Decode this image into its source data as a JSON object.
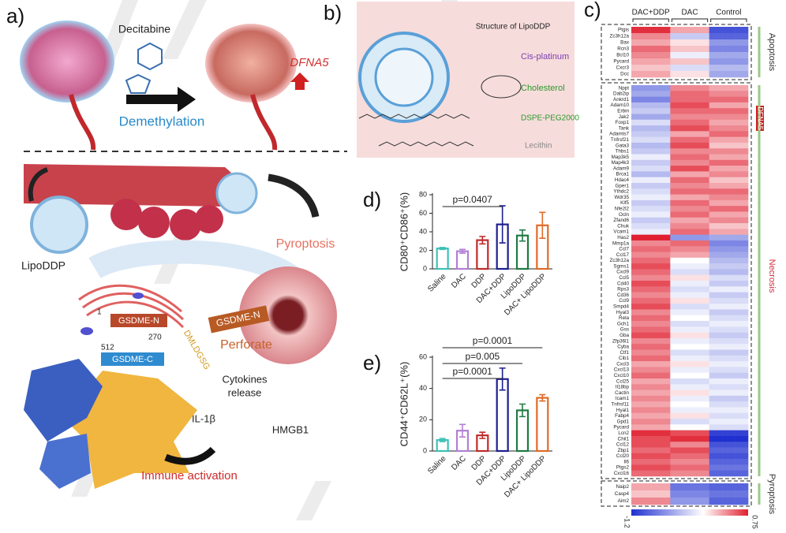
{
  "panel_a": {
    "label": "a)",
    "drug": "Decitabine",
    "process": "Demethylation",
    "gene": "DFNA5",
    "carrier": "LipoDDP",
    "outcome": "Pyroptosis",
    "gsdme_n_1": "GSDME-N",
    "gsdme_n_2": "GSDME-N",
    "gsdme_c": "GSDME-C",
    "residue_start": 1,
    "residue_cut": 270,
    "residue_end": 512,
    "motif": "DMLDGSG",
    "perforate": "Perforate",
    "cytokines": "Cytokines",
    "release": "release",
    "il1b": "IL-1β",
    "hmgb1": "HMGB1",
    "immune": "Immune activation"
  },
  "panel_b": {
    "label": "b)",
    "title": "Structure of LipoDDP",
    "components": [
      "Cis-platinum",
      "Cholesterol",
      "DSPE-PEG2000",
      "Lecithin"
    ]
  },
  "heatmap": {
    "label": "c)",
    "groups": [
      "DAC+DDP",
      "DAC",
      "Control"
    ],
    "marker": "DFNA5",
    "colorbar": {
      "min": -1.2,
      "max": 0.75
    },
    "blocks": [
      {
        "name": "Apoptosis",
        "genes": [
          "Ptgis",
          "Zc3h12a",
          "Bax",
          "Rcn3",
          "Bcl10",
          "Pycard",
          "Cxcr3",
          "Dcc"
        ],
        "values": [
          [
            0.7,
            0.3,
            -1.0
          ],
          [
            0.4,
            -0.3,
            -0.9
          ],
          [
            0.3,
            0.1,
            -0.6
          ],
          [
            0.5,
            0.2,
            -0.7
          ],
          [
            0.4,
            -0.1,
            -0.5
          ],
          [
            0.3,
            0.2,
            -0.6
          ],
          [
            0.2,
            -0.2,
            -0.4
          ],
          [
            0.3,
            0.1,
            -0.5
          ]
        ]
      },
      {
        "name": "Necrosis",
        "genes": [
          "Nppt",
          "Dab2ip",
          "Ankrd1",
          "Adam10",
          "Erbin",
          "Jak2",
          "Foxp1",
          "Tank",
          "Adamts7",
          "Tnfrsf21",
          "Gata3",
          "Thbs1",
          "Map3k5",
          "Map4k3",
          "Adam9",
          "Brca1",
          "Hdac4",
          "Gper1",
          "Ythdc2",
          "Wdr35",
          "Klf5",
          "Nfe2l2",
          "Ocln",
          "Zfand6",
          "Chuk",
          "Vcam1",
          "Has2",
          "Mmp1a",
          "Ccl7",
          "Ccl17",
          "Zc3h12a",
          "Sgms1",
          "Cxcl9",
          "Ccl5",
          "Cd40",
          "Rps3",
          "Cd36",
          "Ccl9",
          "Smpd4",
          "Hyal3",
          "Rela",
          "Gch1",
          "Gss",
          "Gba",
          "Zfp36l1",
          "Cyba",
          "Ctf1",
          "Cib1",
          "Cxcl3",
          "Cxcl13",
          "Cxcl10",
          "Ccl25",
          "Il18bp",
          "Cactin",
          "Icam1",
          "Tnfrsf11",
          "Hyal1",
          "Fabp4",
          "Gpd1",
          "Pycard",
          "Lcn2",
          "Chil1",
          "Ccl12",
          "Zbp1",
          "Ccl20",
          "Il6",
          "Ptgs2",
          "Cxcl16"
        ],
        "values": [
          [
            -0.6,
            0.4,
            0.3
          ],
          [
            -0.5,
            0.5,
            0.4
          ],
          [
            -0.7,
            0.5,
            0.5
          ],
          [
            -0.4,
            0.6,
            0.3
          ],
          [
            -0.3,
            0.5,
            0.5
          ],
          [
            -0.5,
            0.4,
            0.4
          ],
          [
            -0.2,
            0.5,
            0.3
          ],
          [
            -0.4,
            0.6,
            0.4
          ],
          [
            -0.3,
            0.3,
            0.5
          ],
          [
            -0.2,
            0.5,
            0.3
          ],
          [
            -0.4,
            0.6,
            0.2
          ],
          [
            -0.3,
            0.4,
            0.4
          ],
          [
            -0.1,
            0.5,
            0.3
          ],
          [
            -0.3,
            0.4,
            0.5
          ],
          [
            -0.2,
            0.6,
            0.3
          ],
          [
            -0.4,
            0.3,
            0.4
          ],
          [
            -0.1,
            0.5,
            0.2
          ],
          [
            -0.3,
            0.4,
            0.3
          ],
          [
            -0.2,
            0.5,
            0.5
          ],
          [
            -0.1,
            0.3,
            0.4
          ],
          [
            -0.3,
            0.5,
            0.3
          ],
          [
            -0.2,
            0.4,
            0.5
          ],
          [
            -0.1,
            0.5,
            0.3
          ],
          [
            -0.3,
            0.3,
            0.4
          ],
          [
            -0.2,
            0.4,
            0.2
          ],
          [
            -0.1,
            0.5,
            0.3
          ],
          [
            0.75,
            -0.6,
            -0.5
          ],
          [
            0.4,
            0.5,
            -0.7
          ],
          [
            0.5,
            0.4,
            -0.6
          ],
          [
            0.4,
            0.3,
            -0.5
          ],
          [
            0.5,
            0.0,
            -0.4
          ],
          [
            0.6,
            -0.1,
            -0.3
          ],
          [
            0.5,
            -0.2,
            -0.4
          ],
          [
            0.4,
            0.1,
            -0.2
          ],
          [
            0.6,
            -0.1,
            -0.3
          ],
          [
            0.5,
            -0.2,
            -0.1
          ],
          [
            0.4,
            -0.1,
            -0.3
          ],
          [
            0.5,
            0.1,
            -0.2
          ],
          [
            0.6,
            -0.2,
            -0.1
          ],
          [
            0.4,
            -0.1,
            -0.3
          ],
          [
            0.5,
            0.0,
            -0.2
          ],
          [
            0.4,
            -0.2,
            -0.1
          ],
          [
            0.5,
            -0.1,
            -0.2
          ],
          [
            0.6,
            0.1,
            -0.3
          ],
          [
            0.4,
            -0.1,
            -0.2
          ],
          [
            0.5,
            0.0,
            -0.1
          ],
          [
            0.4,
            -0.2,
            -0.3
          ],
          [
            0.5,
            -0.1,
            -0.2
          ],
          [
            0.3,
            0.1,
            -0.1
          ],
          [
            0.4,
            -0.1,
            -0.2
          ],
          [
            0.5,
            0.0,
            -0.3
          ],
          [
            0.3,
            -0.2,
            -0.1
          ],
          [
            0.4,
            -0.1,
            -0.2
          ],
          [
            0.3,
            0.1,
            -0.1
          ],
          [
            0.4,
            -0.1,
            -0.3
          ],
          [
            0.3,
            0.0,
            -0.2
          ],
          [
            0.4,
            -0.1,
            -0.1
          ],
          [
            0.3,
            0.1,
            -0.2
          ],
          [
            0.4,
            -0.2,
            -0.1
          ],
          [
            0.3,
            0.0,
            -0.2
          ],
          [
            0.7,
            0.6,
            -1.1
          ],
          [
            0.6,
            0.7,
            -1.2
          ],
          [
            0.6,
            0.4,
            -1.0
          ],
          [
            0.5,
            0.6,
            -0.9
          ],
          [
            0.6,
            0.5,
            -1.0
          ],
          [
            0.5,
            0.4,
            -0.9
          ],
          [
            0.6,
            0.5,
            -0.8
          ],
          [
            0.5,
            0.4,
            -0.9
          ]
        ]
      },
      {
        "name": "Pyroptosis",
        "genes": [
          "Naip2",
          "Casp4",
          "Aim2"
        ],
        "values": [
          [
            0.3,
            -0.8,
            -0.9
          ],
          [
            0.2,
            -0.7,
            -0.8
          ],
          [
            0.4,
            -0.6,
            -0.9
          ]
        ]
      }
    ]
  },
  "chart_data": [
    {
      "type": "bar",
      "panel_label": "d)",
      "ylabel": "CD80⁺CD86⁺(%)",
      "categories": [
        "Saline",
        "DAC",
        "DDP",
        "DAC+DDP",
        "LipoDDP",
        "DAC+ LipoDDP"
      ],
      "values": [
        22,
        19,
        31,
        48,
        36,
        47
      ],
      "errors": [
        1,
        2,
        4,
        20,
        6,
        14
      ],
      "colors": [
        "#3cc1b8",
        "#b27fd6",
        "#c02b2b",
        "#1d1f8f",
        "#1f7a43",
        "#e06a27"
      ],
      "ylim": [
        0,
        80
      ],
      "yticks": [
        0,
        20,
        40,
        60,
        80
      ],
      "comparisons": [
        {
          "label": "p=0.0407",
          "between": [
            "Saline",
            "DAC+DDP"
          ]
        }
      ]
    },
    {
      "type": "bar",
      "panel_label": "e)",
      "ylabel": "CD44⁺CD62L⁺(%)",
      "categories": [
        "Saline",
        "DAC",
        "DDP",
        "DAC+DDP",
        "LipoDDP",
        "DAC+ LipoDDP"
      ],
      "values": [
        7,
        13,
        10,
        46,
        26,
        34
      ],
      "errors": [
        1,
        4,
        2,
        7,
        4,
        2
      ],
      "colors": [
        "#3cc1b8",
        "#b27fd6",
        "#c02b2b",
        "#1d1f8f",
        "#1f7a43",
        "#e06a27"
      ],
      "ylim": [
        0,
        60
      ],
      "yticks": [
        0,
        20,
        40,
        60
      ],
      "comparisons": [
        {
          "label": "p=0.0001",
          "between": [
            "Saline",
            "DAC+ LipoDDP"
          ]
        },
        {
          "label": "p=0.005",
          "between": [
            "Saline",
            "LipoDDP"
          ]
        },
        {
          "label": "p=0.0001",
          "between": [
            "Saline",
            "DAC+DDP"
          ]
        }
      ]
    }
  ]
}
